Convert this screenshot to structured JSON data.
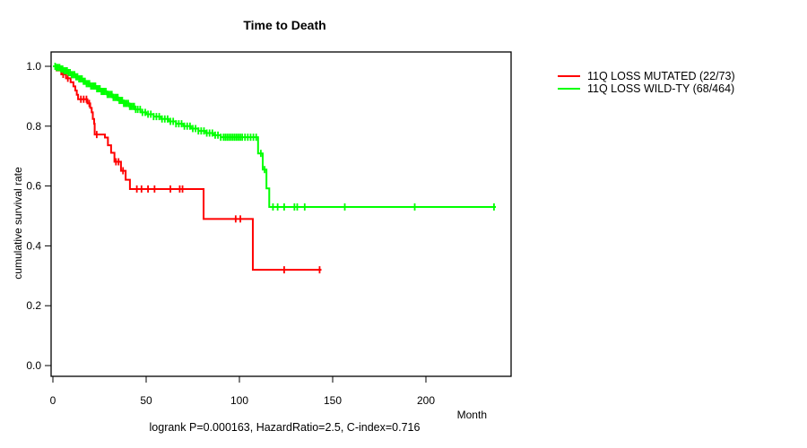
{
  "chart_data": {
    "type": "line",
    "subtype": "kaplan-meier-survival",
    "title": "Time to Death",
    "annotation": "logrank P=0.000163, HazardRatio=2.5, C-index=0.716",
    "xlabel": "Month",
    "ylabel": "cumulative survival rate",
    "xlim": [
      0,
      246
    ],
    "ylim": [
      0,
      1.0
    ],
    "x_tick_values": [
      0,
      50,
      100,
      150,
      200
    ],
    "x_tick_labels": [
      "0",
      "50",
      "100",
      "150",
      "200"
    ],
    "y_tick_values": [
      1.0,
      0.8,
      0.6,
      0.4,
      0.2,
      0.0
    ],
    "y_tick_labels": [
      "1.0",
      "0.8",
      "0.6",
      "0.4",
      "0.2",
      "0.0"
    ],
    "grid": false,
    "legend_position": "right-outside",
    "axis_color": "#000000",
    "background_color": "#FFFFFF",
    "series": [
      {
        "name": "11Q LOSS MUTATED (22/73)",
        "events_over_total": "22/73",
        "color": "#FF0000",
        "end_month": 144,
        "steps": [
          [
            0,
            1.0
          ],
          [
            2,
            0.986
          ],
          [
            4.5,
            0.973
          ],
          [
            7,
            0.96
          ],
          [
            9.5,
            0.947
          ],
          [
            11,
            0.933
          ],
          [
            12,
            0.919
          ],
          [
            12.8,
            0.905
          ],
          [
            13.5,
            0.89
          ],
          [
            18.5,
            0.876
          ],
          [
            20,
            0.861
          ],
          [
            20.8,
            0.846
          ],
          [
            21.4,
            0.824
          ],
          [
            22.1,
            0.808
          ],
          [
            22.4,
            0.772
          ],
          [
            27.9,
            0.762
          ],
          [
            29.5,
            0.736
          ],
          [
            31.2,
            0.711
          ],
          [
            33,
            0.681
          ],
          [
            36.5,
            0.651
          ],
          [
            39,
            0.621
          ],
          [
            41.3,
            0.59
          ],
          [
            80.8,
            0.49
          ],
          [
            107.2,
            0.32
          ]
        ],
        "censor_marks": [
          5.5,
          8,
          15,
          16.5,
          18,
          19.5,
          23.5,
          33.8,
          35.2,
          37.6,
          45,
          47.5,
          51,
          54.5,
          63,
          68,
          69.5,
          98,
          100.5,
          124,
          143
        ]
      },
      {
        "name": "11Q LOSS WILD-TY (68/464)",
        "events_over_total": "68/464",
        "color": "#00FF00",
        "end_month": 237.5,
        "steps": [
          [
            0,
            1.0
          ],
          [
            2,
            0.996
          ],
          [
            4,
            0.991
          ],
          [
            6,
            0.985
          ],
          [
            8,
            0.979
          ],
          [
            10,
            0.972
          ],
          [
            12,
            0.965
          ],
          [
            14,
            0.958
          ],
          [
            16,
            0.95
          ],
          [
            18,
            0.942
          ],
          [
            20,
            0.934
          ],
          [
            23,
            0.925
          ],
          [
            26,
            0.916
          ],
          [
            29,
            0.906
          ],
          [
            32,
            0.896
          ],
          [
            35,
            0.886
          ],
          [
            38,
            0.876
          ],
          [
            41,
            0.866
          ],
          [
            44,
            0.856
          ],
          [
            47,
            0.846
          ],
          [
            50,
            0.84
          ],
          [
            54,
            0.832
          ],
          [
            58,
            0.824
          ],
          [
            62,
            0.816
          ],
          [
            66,
            0.808
          ],
          [
            70,
            0.8
          ],
          [
            74,
            0.792
          ],
          [
            78,
            0.784
          ],
          [
            82,
            0.777
          ],
          [
            86,
            0.77
          ],
          [
            90,
            0.763
          ],
          [
            110,
            0.709
          ],
          [
            112.5,
            0.655
          ],
          [
            114.5,
            0.592
          ],
          [
            116,
            0.53
          ]
        ],
        "censor_marks": [
          1.2,
          2.0,
          2.8,
          3.6,
          4.4,
          5.2,
          6.0,
          6.8,
          7.6,
          8.4,
          9.2,
          10.0,
          10.8,
          11.6,
          12.4,
          13.2,
          14.0,
          14.8,
          15.6,
          16.4,
          17.2,
          18.0,
          18.8,
          19.6,
          20.4,
          21.2,
          22.0,
          22.8,
          23.6,
          24.4,
          25.2,
          26.0,
          26.8,
          27.6,
          28.4,
          29.2,
          30.0,
          30.8,
          31.6,
          32.4,
          33.2,
          34.0,
          34.8,
          35.6,
          36.4,
          37.2,
          38.0,
          38.8,
          39.6,
          40.4,
          41.2,
          42.0,
          42.8,
          43.6,
          44.4,
          45.5,
          46.8,
          48,
          49.5,
          51,
          52.5,
          54,
          55.5,
          57,
          58.5,
          60,
          61.5,
          63,
          64.5,
          66,
          67.5,
          69,
          70.5,
          72,
          73.5,
          75,
          76.5,
          78,
          79.5,
          81,
          82.5,
          84,
          85.5,
          87,
          88.5,
          90,
          91.5,
          92.5,
          93.5,
          94.5,
          95.5,
          96.5,
          97.5,
          98.5,
          99.5,
          100.5,
          101.5,
          103,
          104.5,
          106,
          107.5,
          109,
          111.5,
          113.5,
          118,
          120.5,
          124,
          129.5,
          131,
          135,
          156.5,
          194,
          236.5
        ]
      }
    ]
  }
}
